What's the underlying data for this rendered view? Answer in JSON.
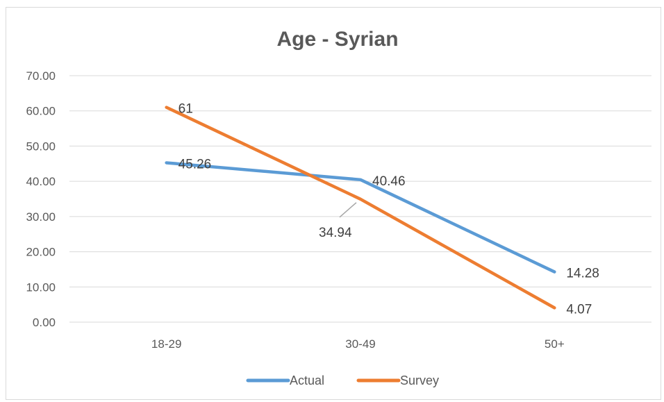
{
  "chart_data": {
    "type": "line",
    "title": "Age - Syrian",
    "xlabel": "",
    "ylabel": "",
    "categories": [
      "18-29",
      "30-49",
      "50+"
    ],
    "ylim": [
      0,
      70
    ],
    "yticks": [
      "0.00",
      "10.00",
      "20.00",
      "30.00",
      "40.00",
      "50.00",
      "60.00",
      "70.00"
    ],
    "grid": true,
    "legend_position": "bottom",
    "series": [
      {
        "name": "Actual",
        "color": "#5b9bd5",
        "values": [
          45.26,
          40.46,
          14.28
        ],
        "labels": [
          "45.26",
          "40.46",
          "14.28"
        ]
      },
      {
        "name": "Survey",
        "color": "#ed7d31",
        "values": [
          61,
          34.94,
          4.07
        ],
        "labels": [
          "61",
          "34.94",
          "4.07"
        ]
      }
    ]
  }
}
